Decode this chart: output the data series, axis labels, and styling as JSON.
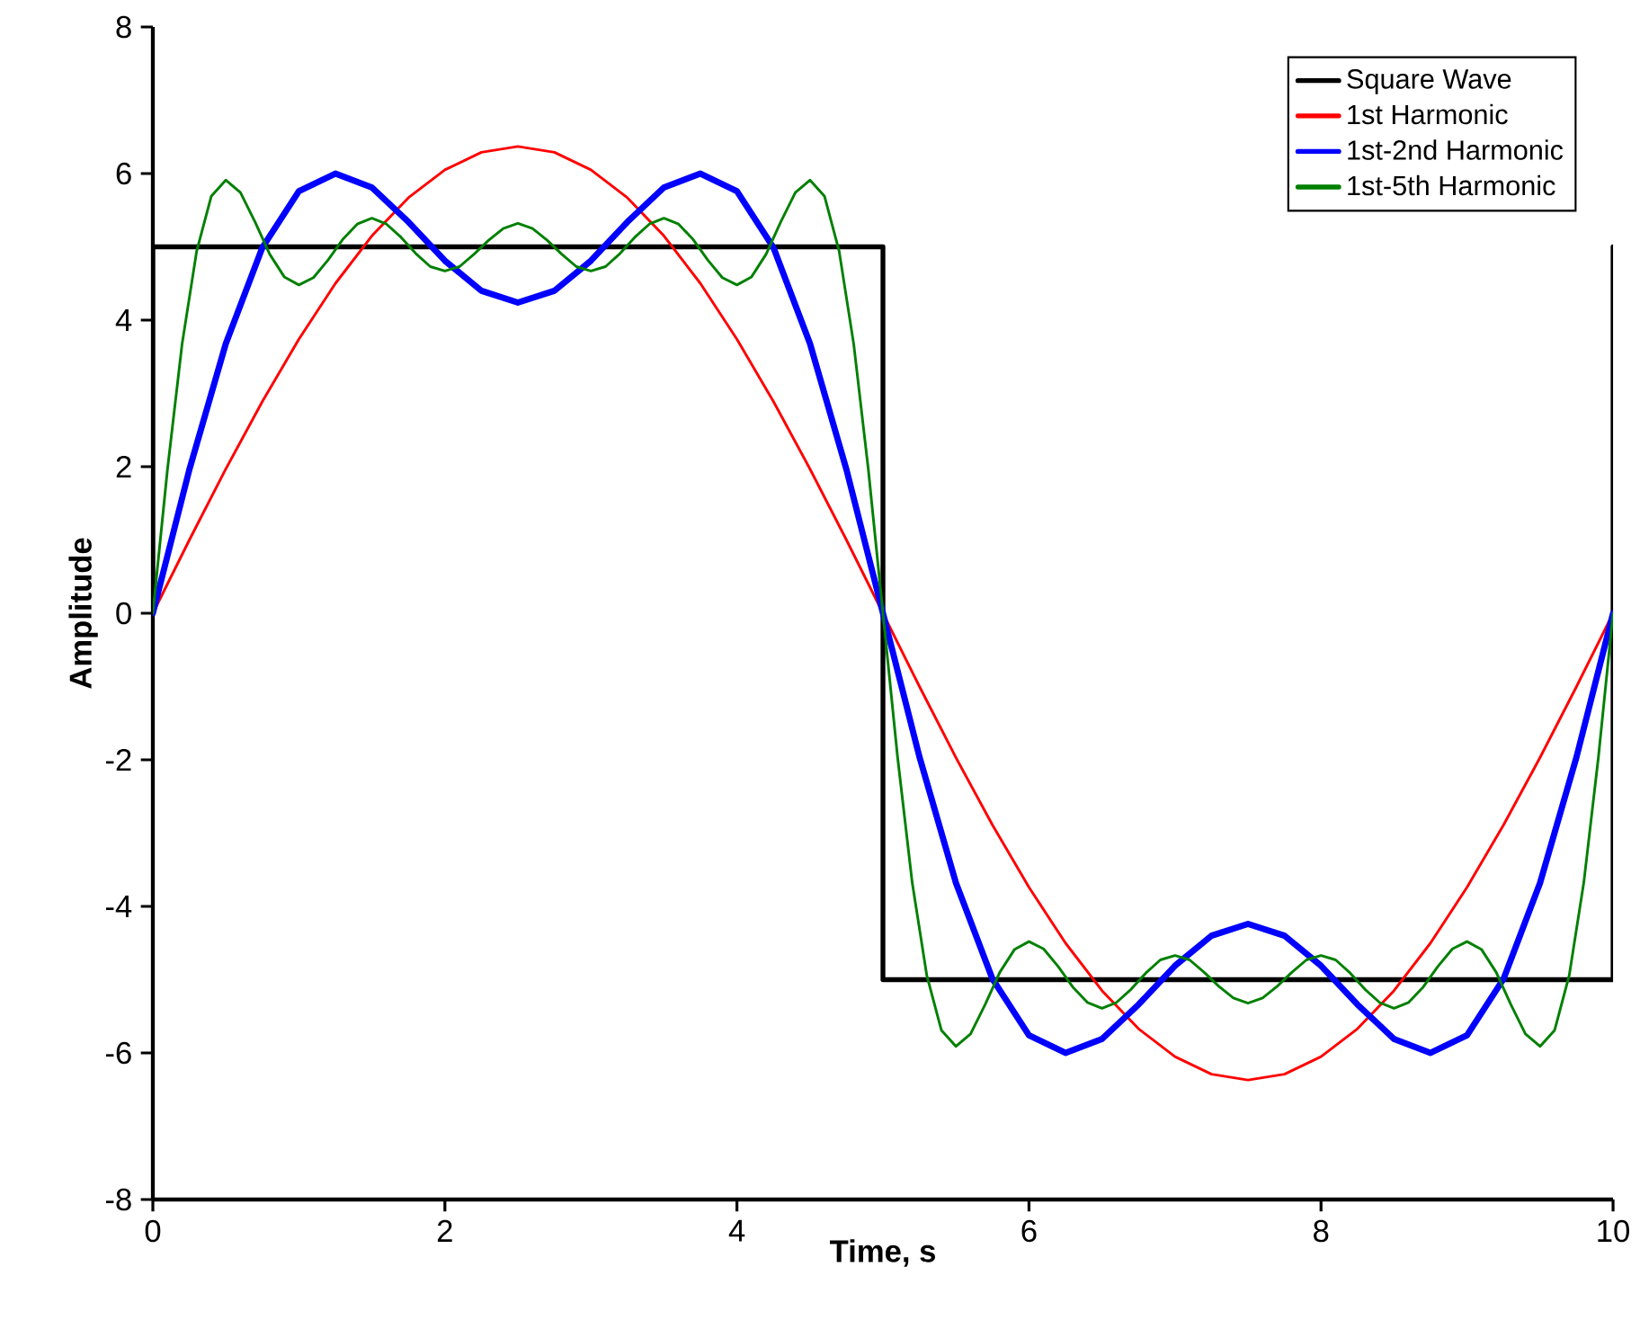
{
  "chart_data": {
    "type": "line",
    "xlabel": "Time, s",
    "ylabel": "Amplitude",
    "xlim": [
      0,
      10
    ],
    "ylim": [
      -8,
      8
    ],
    "xticks": [
      0,
      2,
      4,
      6,
      8,
      10
    ],
    "yticks": [
      -8,
      -6,
      -4,
      -2,
      0,
      2,
      4,
      6,
      8
    ],
    "legend": "top right",
    "grid": false,
    "marker": "none",
    "line_style": "solid",
    "x": [
      0,
      0.25,
      0.5,
      0.75,
      1,
      1.25,
      1.5,
      1.75,
      2,
      2.25,
      2.5,
      2.75,
      3,
      3.25,
      3.5,
      3.75,
      4,
      4.25,
      4.5,
      4.75,
      5,
      5.25,
      5.5,
      5.75,
      6,
      6.25,
      6.5,
      6.75,
      7,
      7.25,
      7.5,
      7.75,
      8,
      8.25,
      8.5,
      8.75,
      9,
      9.25,
      9.5,
      9.75,
      10
    ],
    "series": [
      {
        "name": "Square Wave",
        "color": "#000000",
        "x": [
          0,
          0,
          5,
          5,
          10,
          10
        ],
        "values": [
          0,
          5,
          5,
          -5,
          -5,
          5
        ]
      },
      {
        "name": "1st Harmonic",
        "color": "#ff0000",
        "values": [
          0,
          1,
          1.97,
          2.89,
          3.74,
          4.5,
          5.15,
          5.67,
          6.05,
          6.29,
          6.37,
          6.29,
          6.05,
          5.67,
          5.15,
          4.5,
          3.74,
          2.89,
          1.97,
          1,
          0,
          -1,
          -1.97,
          -2.89,
          -3.74,
          -4.5,
          -5.15,
          -5.67,
          -6.05,
          -6.29,
          -6.37,
          -6.29,
          -6.05,
          -5.67,
          -5.15,
          -4.5,
          -3.74,
          -2.89,
          -1.97,
          -1,
          0
        ]
      },
      {
        "name": "1st-2nd Harmonic",
        "color": "#0000ff",
        "values": [
          0,
          1.96,
          3.68,
          4.99,
          5.76,
          6,
          5.81,
          5.34,
          4.81,
          4.4,
          4.24,
          4.4,
          4.81,
          5.34,
          5.81,
          6,
          5.76,
          4.99,
          3.68,
          1.96,
          0,
          -1.96,
          -3.68,
          -4.99,
          -5.76,
          -6,
          -5.81,
          -5.34,
          -4.81,
          -4.4,
          -4.24,
          -4.4,
          -4.81,
          -5.34,
          -5.81,
          -6,
          -5.76,
          -4.99,
          -3.68,
          -1.96,
          0
        ]
      },
      {
        "name": "1st-5th Harmonic",
        "color": "#008000",
        "x": [
          0,
          0.1,
          0.2,
          0.3,
          0.4,
          0.5,
          0.6,
          0.7,
          0.8,
          0.9,
          1,
          1.1,
          1.2,
          1.3,
          1.4,
          1.5,
          1.6,
          1.7,
          1.8,
          1.9,
          2,
          2.1,
          2.2,
          2.3,
          2.4,
          2.5,
          2.6,
          2.7,
          2.8,
          2.9,
          3,
          3.1,
          3.2,
          3.3,
          3.4,
          3.5,
          3.6,
          3.7,
          3.8,
          3.9,
          4,
          4.1,
          4.2,
          4.3,
          4.4,
          4.5,
          4.6,
          4.7,
          4.8,
          4.9,
          5,
          5.1,
          5.2,
          5.3,
          5.4,
          5.5,
          5.6,
          5.7,
          5.8,
          5.9,
          6,
          6.1,
          6.2,
          6.3,
          6.4,
          6.5,
          6.6,
          6.7,
          6.8,
          6.9,
          7,
          7.1,
          7.2,
          7.3,
          7.4,
          7.5,
          7.6,
          7.7,
          7.8,
          7.9,
          8,
          8.1,
          8.2,
          8.3,
          8.4,
          8.5,
          8.6,
          8.7,
          8.8,
          8.9,
          9,
          9.1,
          9.2,
          9.3,
          9.4,
          9.5,
          9.6,
          9.7,
          9.8,
          9.9,
          10
        ],
        "values": [
          0,
          1.96,
          3.67,
          4.94,
          5.69,
          5.91,
          5.74,
          5.34,
          4.9,
          4.59,
          4.48,
          4.58,
          4.82,
          5.1,
          5.31,
          5.39,
          5.31,
          5.13,
          4.91,
          4.73,
          4.67,
          4.73,
          4.9,
          5.09,
          5.25,
          5.32,
          5.25,
          5.09,
          4.9,
          4.73,
          4.67,
          4.73,
          4.91,
          5.13,
          5.31,
          5.39,
          5.31,
          5.1,
          4.82,
          4.58,
          4.48,
          4.59,
          4.9,
          5.34,
          5.74,
          5.91,
          5.69,
          4.94,
          3.67,
          1.96,
          0,
          -1.96,
          -3.67,
          -4.94,
          -5.69,
          -5.91,
          -5.74,
          -5.34,
          -4.9,
          -4.59,
          -4.48,
          -4.58,
          -4.82,
          -5.1,
          -5.31,
          -5.39,
          -5.31,
          -5.13,
          -4.91,
          -4.73,
          -4.67,
          -4.73,
          -4.9,
          -5.09,
          -5.25,
          -5.32,
          -5.25,
          -5.09,
          -4.9,
          -4.73,
          -4.67,
          -4.73,
          -4.91,
          -5.13,
          -5.31,
          -5.39,
          -5.31,
          -5.1,
          -4.82,
          -4.58,
          -4.48,
          -4.59,
          -4.9,
          -5.34,
          -5.74,
          -5.91,
          -5.69,
          -4.94,
          -3.67,
          -1.96,
          0
        ]
      }
    ]
  }
}
